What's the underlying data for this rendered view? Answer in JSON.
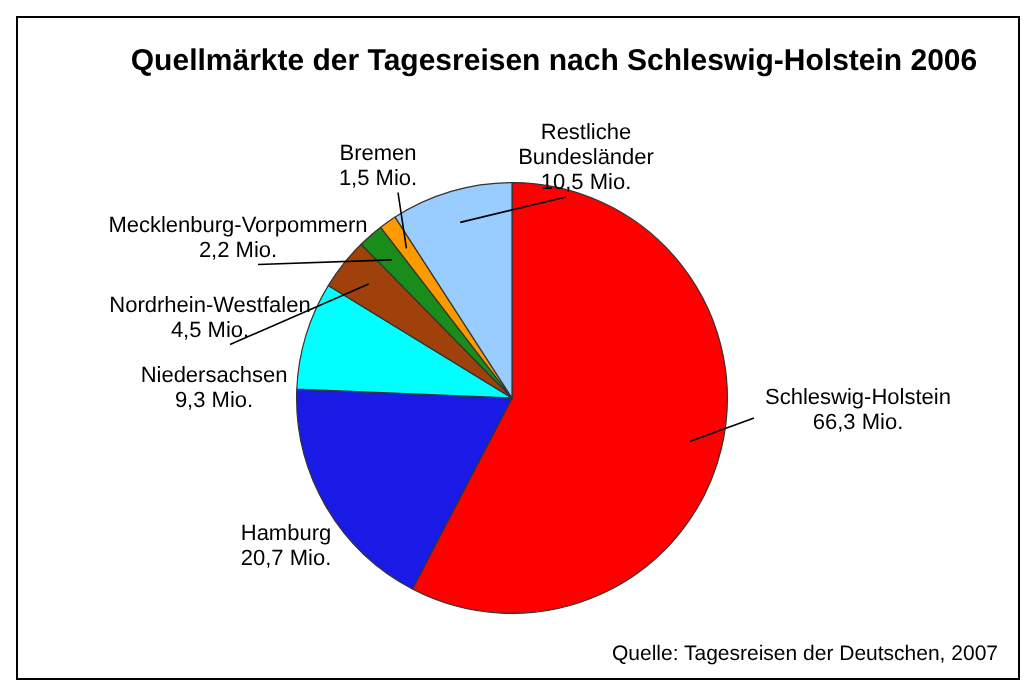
{
  "chart_data": {
    "type": "pie",
    "title": "Quellmärkte der Tagesreisen nach Schleswig-Holstein 2006",
    "categories": [
      "Schleswig-Holstein",
      "Hamburg",
      "Niedersachsen",
      "Nordrhein-Westfalen",
      "Mecklenburg-Vorpommern",
      "Bremen",
      "Restliche\nBundesländer"
    ],
    "values": [
      66.3,
      20.7,
      9.3,
      4.5,
      2.2,
      1.5,
      10.5
    ],
    "value_labels": [
      "66,3 Mio.",
      "20,7 Mio.",
      "9,3 Mio.",
      "4,5 Mio.",
      "2,2 Mio.",
      "1,5 Mio.",
      "10,5 Mio."
    ],
    "colors": [
      "#ff0000",
      "#1a1ae6",
      "#00ffff",
      "#a0400a",
      "#1a8c1a",
      "#ff9900",
      "#99ccff"
    ],
    "annotations": [
      "Quelle: Tagesreisen der Deutschen, 2007"
    ],
    "legend": false
  }
}
